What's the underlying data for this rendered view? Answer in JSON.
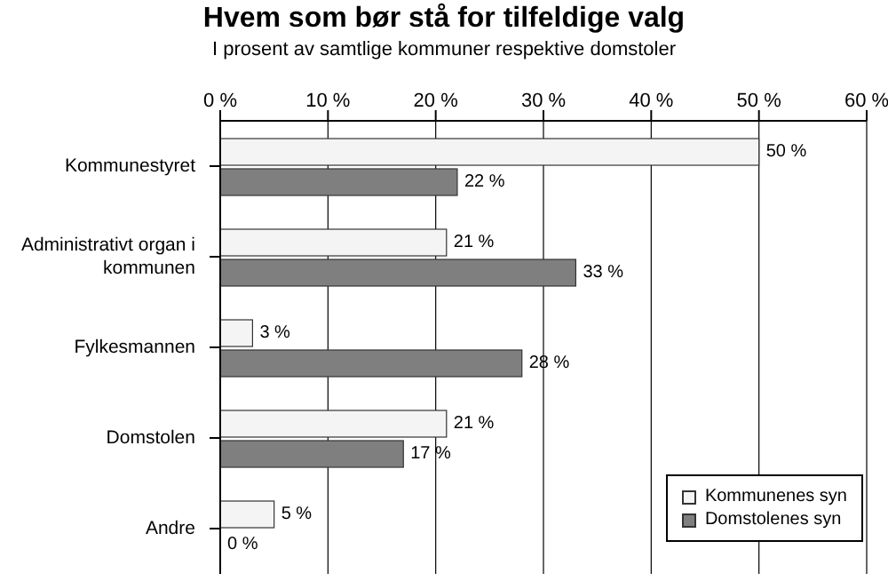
{
  "chart_data": {
    "type": "bar",
    "orientation": "horizontal",
    "title": "Hvem som bør stå for tilfeldige valg",
    "subtitle": "I prosent av samtlige kommuner respektive domstoler",
    "categories": [
      "Kommunestyret",
      "Administrativt organ i kommunen",
      "Fylkesmannen",
      "Domstolen",
      "Andre"
    ],
    "series": [
      {
        "name": "Kommunenes syn",
        "color": "#f4f4f4",
        "values": [
          50,
          21,
          3,
          21,
          5
        ],
        "value_labels": [
          "50 %",
          "21 %",
          "3 %",
          "21 %",
          "5 %"
        ]
      },
      {
        "name": "Domstolenes syn",
        "color": "#7f7f7f",
        "values": [
          22,
          33,
          28,
          17,
          0
        ],
        "value_labels": [
          "22 %",
          "33 %",
          "28 %",
          "17 %",
          "0 %"
        ]
      }
    ],
    "xlim": [
      0,
      60
    ],
    "xticks": [
      {
        "value": 0,
        "label": "0 %"
      },
      {
        "value": 10,
        "label": "10 %"
      },
      {
        "value": 20,
        "label": "20 %"
      },
      {
        "value": 30,
        "label": "30 %"
      },
      {
        "value": 40,
        "label": "40 %"
      },
      {
        "value": 50,
        "label": "50 %"
      },
      {
        "value": 60,
        "label": "60 %"
      }
    ],
    "grid": "x",
    "legend": "bottom right"
  }
}
